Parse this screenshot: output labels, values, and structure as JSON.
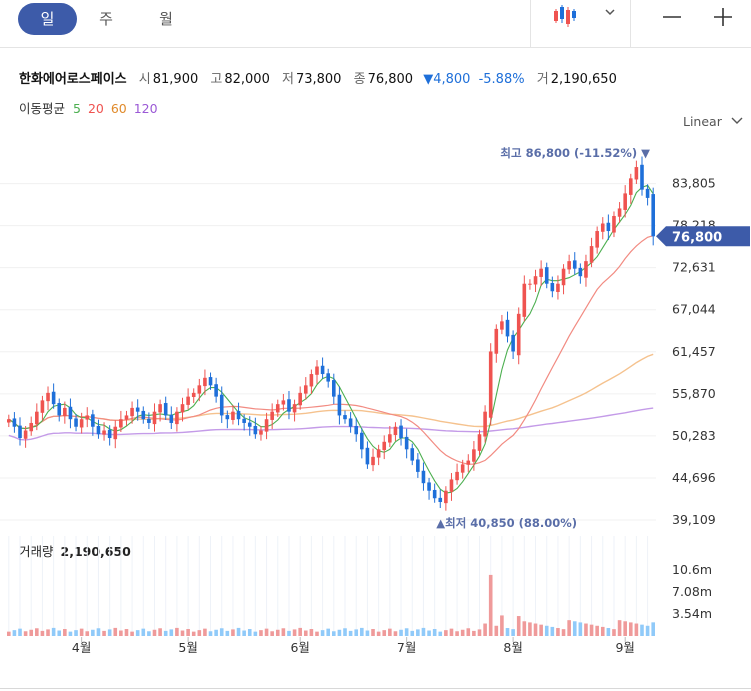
{
  "tabs": [
    {
      "label": "일",
      "active": true
    },
    {
      "label": "주",
      "active": false
    },
    {
      "label": "월",
      "active": false
    }
  ],
  "toolbar": {
    "chart_type_icon": "candlestick-icon",
    "dropdown_icon": "chevron-down-icon",
    "zoom_out_icon": "minus-icon",
    "zoom_in_icon": "plus-icon"
  },
  "stock": {
    "name": "한화에어로스페이스",
    "open_label": "시",
    "open": "81,900",
    "high_label": "고",
    "high": "82,000",
    "low_label": "저",
    "low": "73,800",
    "close_label": "종",
    "close": "76,800",
    "change": "▼4,800",
    "change_pct": "-5.88%",
    "volume_label": "거",
    "volume": "2,190,650"
  },
  "ma": {
    "label": "이동평균",
    "p5": "5",
    "p20": "20",
    "p60": "60",
    "p120": "120"
  },
  "scale_mode": "Linear",
  "current_price_tag": "76,800",
  "max_annotation": "최고 86,800 (-11.52%)",
  "min_annotation": "최저 40,850 (88.00%)",
  "volume_panel": {
    "label": "거래량",
    "value": "2,190,650",
    "ticks": [
      "10.6m",
      "7.08m",
      "3.54m"
    ]
  },
  "colors": {
    "up": "#ef5350",
    "down": "#1e6fd9",
    "ma5": "#4caf50",
    "ma20": "#f28b82",
    "ma60": "#f5c28e",
    "ma120": "#c49be8",
    "tag": "#3d5ba9",
    "accent": "#3d5ba9"
  },
  "chart_data": {
    "type": "candlestick",
    "x_ticks": [
      "4월",
      "5월",
      "6월",
      "7월",
      "8월",
      "9월"
    ],
    "y_ticks": [
      83805,
      78218,
      72631,
      67044,
      61457,
      55870,
      50283,
      44696,
      39109
    ],
    "ylim": [
      39109,
      86800
    ],
    "close_series": [
      52500,
      51500,
      50000,
      51000,
      52000,
      53500,
      55000,
      56000,
      54500,
      53000,
      54000,
      52500,
      51500,
      52500,
      53000,
      51500,
      50500,
      51000,
      50000,
      51500,
      52500,
      53000,
      54000,
      53500,
      52500,
      52000,
      53500,
      54500,
      53000,
      52000,
      53500,
      54500,
      55500,
      56000,
      57000,
      58000,
      57000,
      55500,
      53000,
      52500,
      53500,
      52500,
      52000,
      51500,
      50500,
      51000,
      52500,
      53500,
      54500,
      55000,
      53500,
      54500,
      56000,
      57000,
      58500,
      59500,
      58500,
      57500,
      55500,
      53000,
      52500,
      51500,
      50500,
      48500,
      46500,
      47500,
      48500,
      49500,
      50500,
      51500,
      50000,
      48500,
      47000,
      45500,
      44000,
      43000,
      42000,
      41500,
      43000,
      44500,
      45500,
      46500,
      47000,
      48500,
      50500,
      53500,
      61500,
      64500,
      65500,
      63500,
      61500,
      66500,
      70500,
      70500,
      71500,
      72500,
      70500,
      69500,
      70500,
      72500,
      73500,
      72500,
      71500,
      73500,
      75500,
      77500,
      78500,
      77500,
      79500,
      80500,
      82500,
      84500,
      86000,
      83000,
      81900,
      76800
    ],
    "ma5": "short-term moving average line",
    "ma20": "medium-term moving average line",
    "ma60": "60-day moving average line",
    "ma120": "120-day moving average line",
    "high": 86800,
    "low": 40850,
    "last_close": 76800,
    "volume_ylim": [
      0,
      10600000
    ]
  }
}
